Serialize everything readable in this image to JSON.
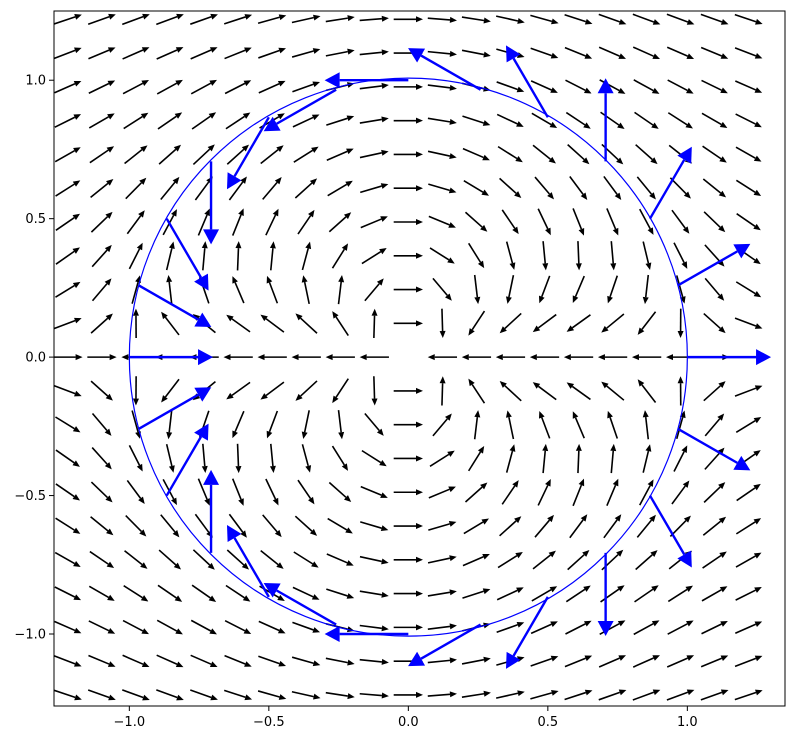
{
  "chart_data": {
    "type": "vector_field",
    "title": "",
    "xlabel": "",
    "ylabel": "",
    "xlim": [
      -1.27,
      1.35
    ],
    "ylim": [
      -1.26,
      1.25
    ],
    "x_ticks": [
      -1.0,
      -0.5,
      0.0,
      0.5,
      1.0
    ],
    "x_tick_labels": [
      "−1.0",
      "−0.5",
      "0.0",
      "0.5",
      "1.0"
    ],
    "y_ticks": [
      1.0,
      0.5,
      0.0,
      -0.5,
      -1.0
    ],
    "y_tick_labels": [
      "1.0",
      "0.5",
      "0.0",
      "−0.5",
      "−1.0"
    ],
    "grid": false,
    "field": {
      "description_color": "#000000",
      "x_range": [
        -1.22,
        1.22
      ],
      "y_range": [
        -1.22,
        1.22
      ],
      "grid_n": 21,
      "field_type": "dipole_potential_flow_plus_uniform"
    },
    "circle": {
      "center": [
        0,
        0
      ],
      "radius": 1.0,
      "color": "#0000ff"
    },
    "highlighted_vectors": {
      "color": "#0000ff",
      "points_angles_deg": [
        0,
        15,
        30,
        45,
        60,
        75,
        90,
        105,
        120,
        135,
        150,
        165,
        180,
        195,
        210,
        225,
        240,
        255,
        270,
        285,
        300,
        315,
        330,
        345
      ]
    }
  }
}
